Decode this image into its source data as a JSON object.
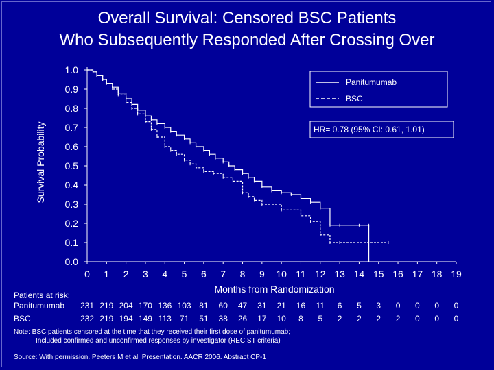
{
  "title_line1": "Overall Survival: Censored BSC Patients",
  "title_line2": "Who Subsequently Responded After Crossing Over",
  "chart_data": {
    "type": "line",
    "ylabel": "Survival Probability",
    "xlabel": "Months from Randomization",
    "xlim": [
      0,
      19
    ],
    "ylim": [
      0,
      1
    ],
    "x_ticks": [
      "0",
      "1",
      "2",
      "3",
      "4",
      "5",
      "6",
      "7",
      "8",
      "9",
      "10",
      "11",
      "12",
      "13",
      "14",
      "15",
      "16",
      "17",
      "18",
      "19"
    ],
    "y_ticks": [
      "0.0",
      "0.1",
      "0.2",
      "0.3",
      "0.4",
      "0.5",
      "0.6",
      "0.7",
      "0.8",
      "0.9",
      "1.0"
    ],
    "legend_position": "top-right",
    "annotation": "HR= 0.78 (95% CI: 0.61, 1.01)",
    "series": [
      {
        "name": "Panitumumab",
        "style": "solid",
        "points": [
          [
            0,
            1.0
          ],
          [
            0.3,
            0.99
          ],
          [
            0.5,
            0.97
          ],
          [
            0.8,
            0.95
          ],
          [
            1.0,
            0.93
          ],
          [
            1.3,
            0.91
          ],
          [
            1.6,
            0.88
          ],
          [
            2.0,
            0.85
          ],
          [
            2.3,
            0.82
          ],
          [
            2.6,
            0.79
          ],
          [
            3.0,
            0.76
          ],
          [
            3.3,
            0.74
          ],
          [
            3.6,
            0.72
          ],
          [
            4.0,
            0.7
          ],
          [
            4.3,
            0.68
          ],
          [
            4.6,
            0.66
          ],
          [
            5.0,
            0.64
          ],
          [
            5.3,
            0.62
          ],
          [
            5.6,
            0.6
          ],
          [
            6.0,
            0.58
          ],
          [
            6.3,
            0.56
          ],
          [
            6.6,
            0.54
          ],
          [
            7.0,
            0.52
          ],
          [
            7.3,
            0.5
          ],
          [
            7.6,
            0.48
          ],
          [
            8.0,
            0.46
          ],
          [
            8.3,
            0.44
          ],
          [
            8.6,
            0.42
          ],
          [
            9.0,
            0.39
          ],
          [
            9.5,
            0.37
          ],
          [
            10.0,
            0.36
          ],
          [
            10.5,
            0.35
          ],
          [
            11.0,
            0.33
          ],
          [
            11.5,
            0.31
          ],
          [
            12.0,
            0.28
          ],
          [
            12.5,
            0.19
          ],
          [
            13.0,
            0.19
          ],
          [
            14.0,
            0.19
          ],
          [
            14.5,
            0.19
          ],
          [
            14.5,
            0.0
          ]
        ]
      },
      {
        "name": "BSC",
        "style": "dashed",
        "points": [
          [
            0,
            1.0
          ],
          [
            0.3,
            0.99
          ],
          [
            0.5,
            0.97
          ],
          [
            0.8,
            0.95
          ],
          [
            1.0,
            0.93
          ],
          [
            1.3,
            0.9
          ],
          [
            1.6,
            0.87
          ],
          [
            2.0,
            0.83
          ],
          [
            2.3,
            0.8
          ],
          [
            2.6,
            0.77
          ],
          [
            3.0,
            0.73
          ],
          [
            3.3,
            0.69
          ],
          [
            3.6,
            0.65
          ],
          [
            4.0,
            0.6
          ],
          [
            4.3,
            0.58
          ],
          [
            4.6,
            0.56
          ],
          [
            5.0,
            0.53
          ],
          [
            5.3,
            0.51
          ],
          [
            5.6,
            0.49
          ],
          [
            6.0,
            0.47
          ],
          [
            6.5,
            0.46
          ],
          [
            7.0,
            0.44
          ],
          [
            7.5,
            0.42
          ],
          [
            8.0,
            0.36
          ],
          [
            8.3,
            0.34
          ],
          [
            8.6,
            0.32
          ],
          [
            9.0,
            0.3
          ],
          [
            10.0,
            0.27
          ],
          [
            11.0,
            0.24
          ],
          [
            11.5,
            0.21
          ],
          [
            12.0,
            0.14
          ],
          [
            12.5,
            0.1
          ],
          [
            13.0,
            0.1
          ],
          [
            15.5,
            0.1
          ]
        ]
      }
    ]
  },
  "risk_table": {
    "header": "Patients at risk:",
    "rows": [
      {
        "label": "Panitumumab",
        "values": [
          "231",
          "219",
          "204",
          "170",
          "136",
          "103",
          "81",
          "60",
          "47",
          "31",
          "21",
          "16",
          "11",
          "6",
          "5",
          "3",
          "0",
          "0",
          "0",
          "0"
        ]
      },
      {
        "label": "BSC",
        "values": [
          "232",
          "219",
          "194",
          "149",
          "113",
          "71",
          "51",
          "38",
          "26",
          "17",
          "10",
          "8",
          "5",
          "2",
          "2",
          "2",
          "2",
          "0",
          "0",
          "0"
        ]
      }
    ]
  },
  "note_line1": "Note: BSC patients censored at the time that they received their first dose of panitumumab;",
  "note_line2": "Included confirmed and unconfirmed responses by investigator (RECIST criteria)",
  "source": "Source: With permission. Peeters M et al. Presentation. AACR 2006. Abstract CP-1"
}
